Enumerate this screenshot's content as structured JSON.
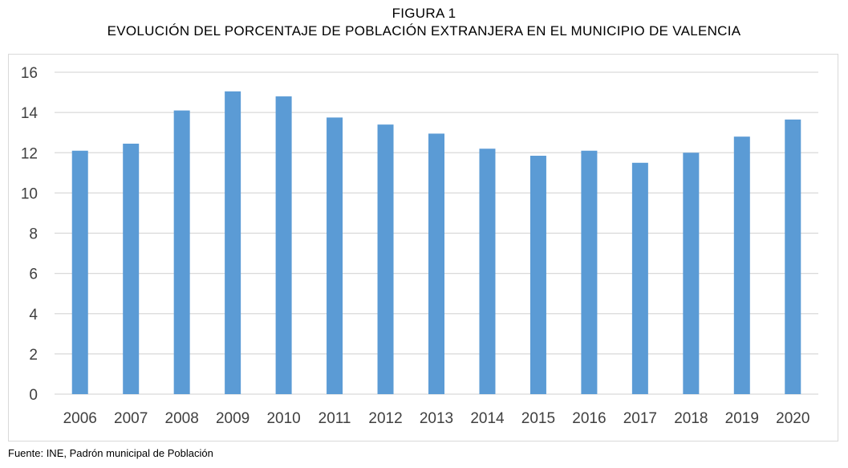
{
  "header": {
    "label": "FIGURA 1",
    "title": "EVOLUCIÓN DEL PORCENTAJE DE POBLACIÓN EXTRANJERA EN EL MUNICIPIO DE VALENCIA"
  },
  "source": "Fuente: INE, Padrón municipal de Población",
  "chart_data": {
    "type": "bar",
    "title": "EVOLUCIÓN DEL PORCENTAJE DE POBLACIÓN EXTRANJERA EN EL MUNICIPIO DE VALENCIA",
    "xlabel": "",
    "ylabel": "",
    "categories": [
      "2006",
      "2007",
      "2008",
      "2009",
      "2010",
      "2011",
      "2012",
      "2013",
      "2014",
      "2015",
      "2016",
      "2017",
      "2018",
      "2019",
      "2020"
    ],
    "values": [
      12.1,
      12.45,
      14.1,
      15.05,
      14.8,
      13.75,
      13.4,
      12.95,
      12.2,
      11.85,
      12.1,
      11.5,
      12.0,
      12.8,
      13.65
    ],
    "ylim": [
      0,
      16
    ],
    "yticks": [
      0,
      2,
      4,
      6,
      8,
      10,
      12,
      14,
      16
    ],
    "grid": true,
    "legend": "none",
    "bar_color": "#5b9bd5",
    "grid_color": "#d9d9d9"
  }
}
